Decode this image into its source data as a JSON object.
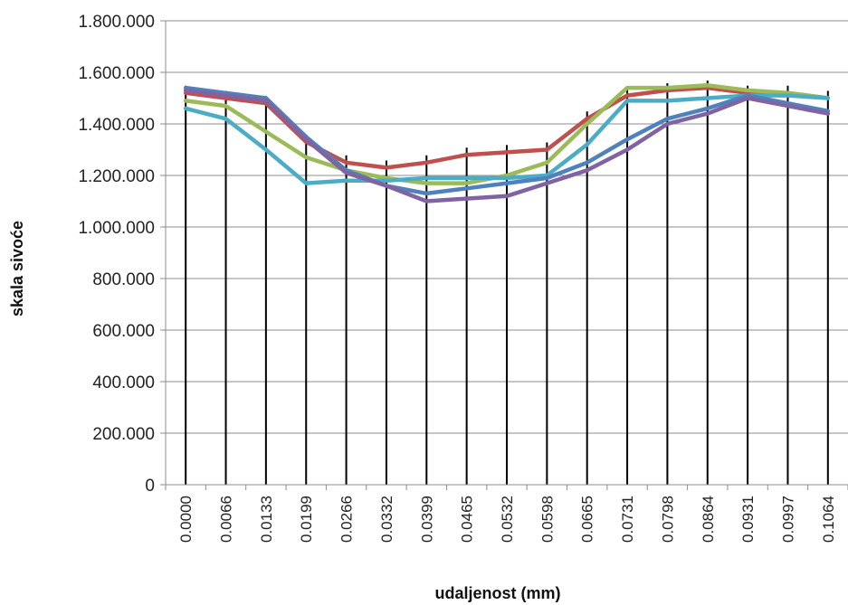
{
  "chart_data": {
    "type": "line",
    "title": "",
    "xlabel": "udaljenost (mm)",
    "ylabel": "skala sivoće",
    "categories": [
      "0.0000",
      "0.0066",
      "0.0133",
      "0.0199",
      "0.0266",
      "0.0332",
      "0.0399",
      "0.0465",
      "0.0532",
      "0.0598",
      "0.0665",
      "0.0731",
      "0.0798",
      "0.0864",
      "0.0931",
      "0.0997",
      "0.1064"
    ],
    "ylim": [
      0,
      1800000
    ],
    "yticks": [
      0,
      200000,
      400000,
      600000,
      800000,
      1000000,
      1200000,
      1400000,
      1600000,
      1800000
    ],
    "ytick_labels": [
      "0",
      "200.000",
      "400.000",
      "600.000",
      "800.000",
      "1.000.000",
      "1.200.000",
      "1.400.000",
      "1.600.000",
      "1.800.000"
    ],
    "grid": {
      "horizontal": true,
      "vertical": true
    },
    "series": [
      {
        "color": "#c0504d",
        "values": [
          1520000,
          1500000,
          1480000,
          1330000,
          1250000,
          1230000,
          1250000,
          1280000,
          1290000,
          1300000,
          1420000,
          1510000,
          1530000,
          1540000,
          1520000,
          1520000,
          1500000
        ]
      },
      {
        "color": "#9bbb59",
        "values": [
          1490000,
          1470000,
          1370000,
          1270000,
          1220000,
          1190000,
          1170000,
          1170000,
          1200000,
          1250000,
          1400000,
          1540000,
          1540000,
          1550000,
          1530000,
          1520000,
          1500000
        ]
      },
      {
        "color": "#4bacc6",
        "values": [
          1460000,
          1420000,
          1300000,
          1170000,
          1180000,
          1180000,
          1190000,
          1190000,
          1190000,
          1200000,
          1320000,
          1490000,
          1490000,
          1500000,
          1510000,
          1510000,
          1500000
        ]
      },
      {
        "color": "#4f81bd",
        "values": [
          1540000,
          1520000,
          1500000,
          1350000,
          1220000,
          1160000,
          1130000,
          1150000,
          1170000,
          1190000,
          1250000,
          1340000,
          1420000,
          1460000,
          1510000,
          1480000,
          1450000
        ]
      },
      {
        "color": "#8064a2",
        "values": [
          1530000,
          1510000,
          1490000,
          1340000,
          1210000,
          1160000,
          1100000,
          1110000,
          1120000,
          1170000,
          1220000,
          1300000,
          1400000,
          1440000,
          1500000,
          1470000,
          1440000
        ]
      }
    ]
  }
}
